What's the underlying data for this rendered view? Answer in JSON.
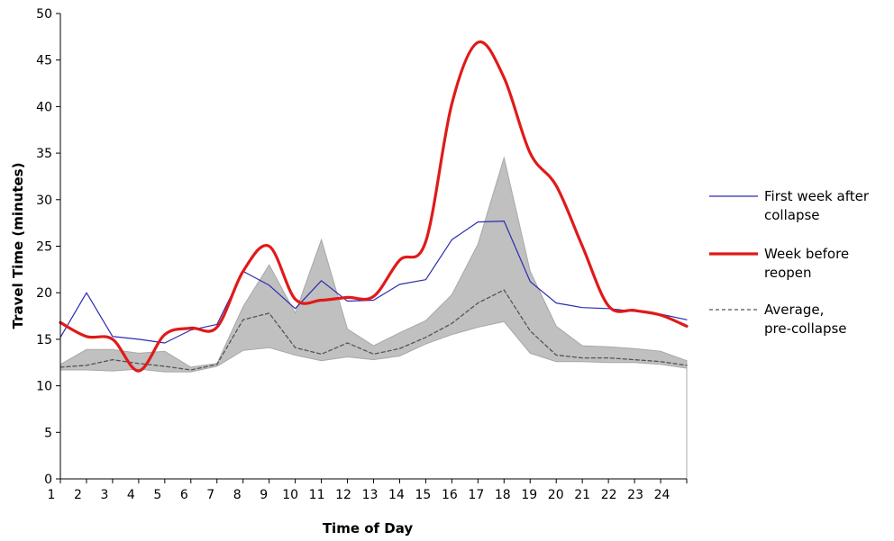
{
  "chart_data": {
    "type": "line",
    "xlabel": "Time of Day",
    "ylabel": "Travel Time (minutes)",
    "x": [
      1,
      2,
      3,
      4,
      5,
      6,
      7,
      8,
      9,
      10,
      11,
      12,
      13,
      14,
      15,
      16,
      17,
      18,
      19,
      20,
      21,
      22,
      23,
      24,
      25
    ],
    "x_tick_labels": [
      "1",
      "2",
      "3",
      "4",
      "5",
      "6",
      "7",
      "8",
      "9",
      "10",
      "11",
      "12",
      "13",
      "14",
      "15",
      "16",
      "17",
      "18",
      "19",
      "20",
      "21",
      "22",
      "23",
      "24",
      ""
    ],
    "ylim": [
      0,
      50
    ],
    "y_ticks": [
      0,
      5,
      10,
      15,
      20,
      25,
      30,
      35,
      40,
      45,
      50
    ],
    "grid": false,
    "legend_position": "right",
    "band": {
      "color": "#c0c0c0",
      "upper": [
        12.3,
        13.9,
        13.9,
        13.5,
        13.7,
        12.0,
        12.4,
        18.5,
        23.0,
        17.8,
        25.7,
        16.1,
        14.3,
        15.7,
        17.0,
        19.8,
        25.2,
        34.5,
        22.3,
        16.4,
        14.3,
        14.2,
        14.0,
        13.7,
        12.7
      ],
      "lower": [
        11.7,
        11.7,
        11.6,
        11.8,
        11.5,
        11.5,
        12.1,
        13.8,
        14.1,
        13.3,
        12.7,
        13.1,
        12.8,
        13.2,
        14.5,
        15.5,
        16.3,
        16.9,
        13.5,
        12.6,
        12.6,
        12.5,
        12.5,
        12.3,
        11.9
      ]
    },
    "series": [
      {
        "name": "First week after collapse",
        "style": "thin",
        "color": "#2b2bb3",
        "values": [
          15.2,
          20.0,
          15.3,
          15.0,
          14.6,
          16.0,
          16.6,
          22.3,
          20.8,
          18.3,
          21.3,
          19.1,
          19.2,
          20.9,
          21.4,
          25.7,
          27.6,
          27.7,
          21.2,
          18.9,
          18.4,
          18.3,
          18.0,
          17.7,
          17.1
        ]
      },
      {
        "name": "Week before reopen",
        "style": "thick",
        "color": "#e01a1a",
        "values": [
          16.8,
          15.3,
          15.0,
          11.6,
          15.5,
          16.2,
          16.3,
          22.3,
          25.0,
          19.3,
          19.2,
          19.5,
          19.6,
          23.5,
          25.5,
          40.3,
          46.9,
          43.1,
          35.0,
          31.5,
          25.0,
          18.6,
          18.1,
          17.6,
          16.4
        ]
      },
      {
        "name": "Average, pre-collapse",
        "style": "dashed",
        "color": "#555555",
        "values": [
          12.0,
          12.2,
          12.8,
          12.4,
          12.1,
          11.7,
          12.3,
          17.1,
          17.8,
          14.1,
          13.4,
          14.6,
          13.4,
          14.0,
          15.2,
          16.7,
          18.9,
          20.3,
          15.9,
          13.3,
          13.0,
          13.0,
          12.8,
          12.6,
          12.2
        ]
      }
    ]
  }
}
